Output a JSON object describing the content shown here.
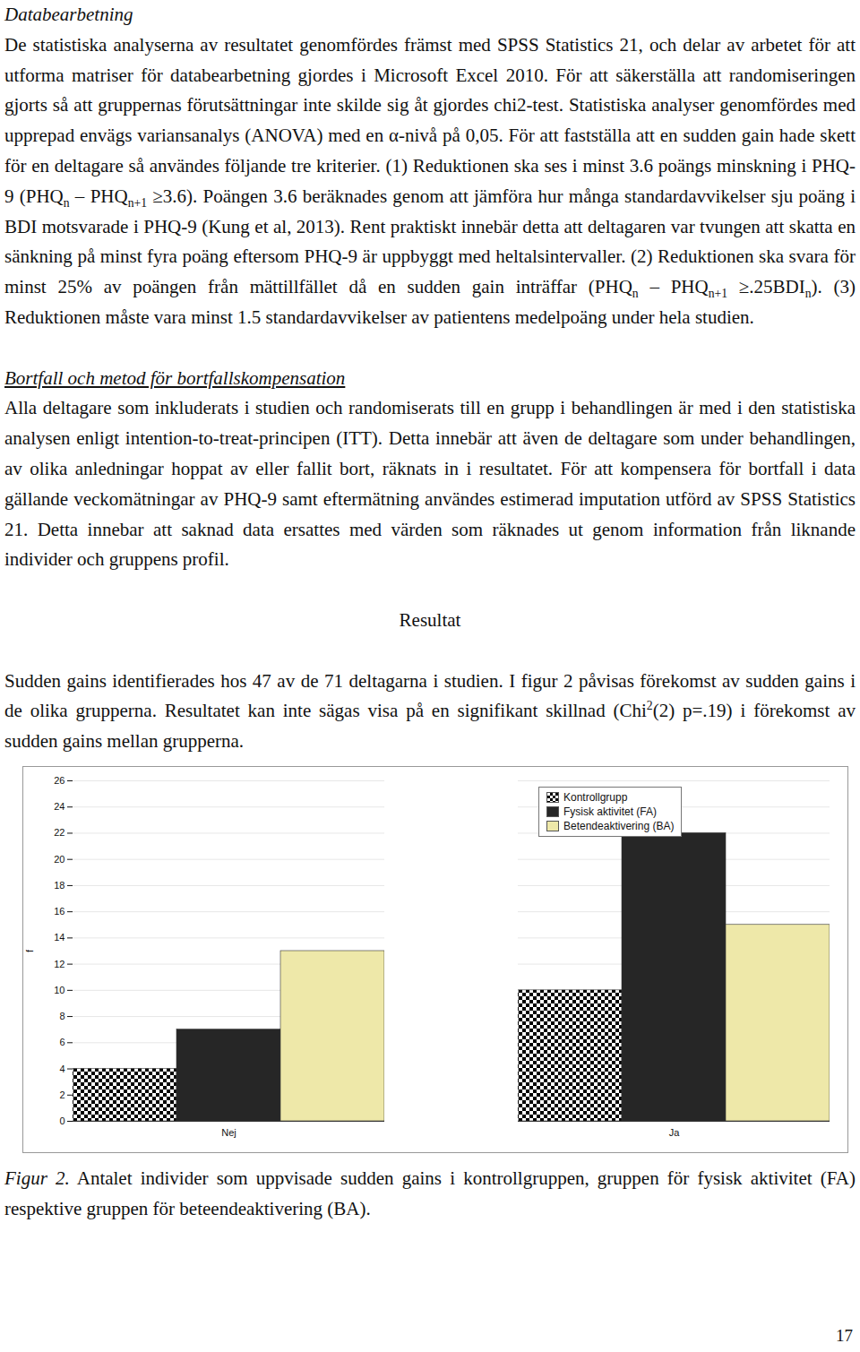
{
  "page": {
    "sections": [
      {
        "heading": "Databearbetning",
        "paragraphs": [
          [
            "De statistiska analyserna av resultatet genomfördes främst med SPSS Statistics 21, och delar av arbetet för att utforma matriser för databearbetning gjordes i Microsoft Excel 2010. För att säkerställa att randomiseringen gjorts så att gruppernas förutsättningar inte skilde sig åt gjordes chi2-test. Statistiska analyser genomfördes med upprepad envägs variansanalys (ANOVA) med en α-nivå på 0,05. För att fastställa att en sudden gain hade skett för en deltagare så användes följande tre kriterier. (1) Reduktionen ska ses i minst 3.6 poängs minskning i PHQ-9 (PHQ",
            {
              "sub": "n"
            },
            " – PHQ",
            {
              "sub": "n+1"
            },
            " ≥3.6). Poängen 3.6 beräknades genom att jämföra hur många standardavvikelser sju poäng i BDI motsvarade i PHQ-9 (Kung et al, 2013). Rent praktiskt innebär detta att deltagaren var tvungen att skatta en sänkning på minst fyra poäng eftersom PHQ-9 är uppbyggt med heltalsintervaller. (2) Reduktionen ska svara för minst 25% av poängen från mättillfället då en sudden gain inträffar (PHQ",
            {
              "sub": "n"
            },
            " – PHQ",
            {
              "sub": "n+1"
            },
            " ≥.25BDI",
            {
              "sub": "n"
            },
            "). (3) Reduktionen måste vara minst 1.5 standardavvikelser av patientens medelpoäng under hela studien."
          ]
        ]
      },
      {
        "heading": "Bortfall och metod för bortfallskompensation",
        "paragraphs": [
          [
            "Alla deltagare som inkluderats i studien och randomiserats till en grupp i behandlingen är med i den statistiska analysen enligt intention-to-treat-principen (ITT). Detta innebär att även de deltagare som under behandlingen, av olika anledningar hoppat av eller fallit bort, räknats in i resultatet. För att kompensera för bortfall i data gällande veckomätningar av PHQ-9 samt eftermätning användes estimerad imputation utförd av SPSS Statistics 21. Detta innebar att saknad data ersattes med värden som räknades ut genom information från liknande individer och gruppens profil."
          ]
        ]
      },
      {
        "heading": "Resultat",
        "paragraphs": [
          [
            "Sudden gains identifierades hos 47 av de 71 deltagarna i studien. I figur 2 påvisas förekomst av sudden gains i de olika grupperna. Resultatet kan inte sägas visa på en signifikant skillnad (Chi",
            {
              "sup": "2"
            },
            "(2) p=.19) i förekomst av sudden gains mellan grupperna."
          ]
        ]
      }
    ],
    "caption": [
      {
        "i": "Figur 2."
      },
      " Antalet individer som uppvisade sudden gains i kontrollgruppen, gruppen för fysisk aktivitet (FA) respektive gruppen för beteendeaktivering (BA)."
    ],
    "page_number": "17"
  },
  "chart_data": {
    "type": "bar",
    "categories": [
      "Nej",
      "Ja"
    ],
    "series": [
      {
        "name": "Kontrollgrupp",
        "color": "#000000",
        "values": [
          4,
          10
        ]
      },
      {
        "name": "Fysisk aktivitet (FA)",
        "color": "#262626",
        "values": [
          7,
          22
        ]
      },
      {
        "name": "Betendeaktivering (BA)",
        "color": "#eee8a9",
        "values": [
          13,
          15
        ]
      }
    ],
    "y_label": "f",
    "ylim": [
      0,
      26
    ],
    "yticks": [
      0,
      2,
      4,
      6,
      8,
      10,
      12,
      14,
      16,
      18,
      20,
      22,
      24,
      26
    ],
    "grid": true,
    "legend": "top-right"
  }
}
